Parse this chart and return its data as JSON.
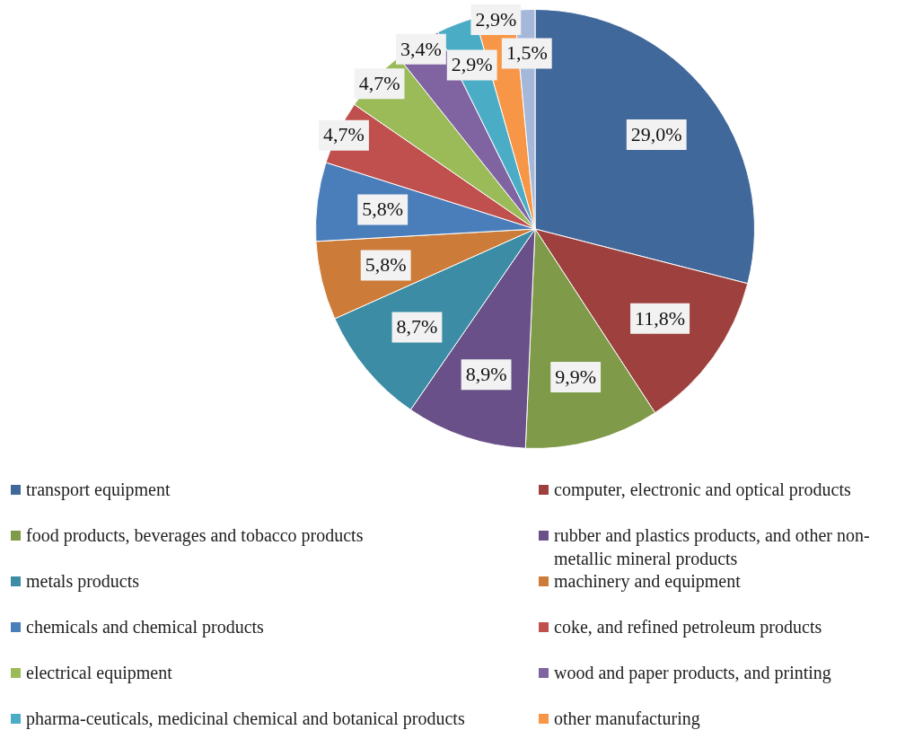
{
  "chart_data": {
    "type": "pie",
    "categories": [
      "transport equipment",
      "computer, electronic and optical products",
      "food products, beverages and tobacco products",
      "rubber and plastics products, and other non-metallic mineral products",
      "metals products",
      "machinery and equipment",
      "chemicals and chemical products",
      "coke, and refined petroleum products",
      "electrical equipment",
      "wood and paper products, and printing",
      "pharma-ceuticals, medicinal chemical and botanical products",
      "other manufacturing",
      null
    ],
    "values": [
      29.0,
      11.8,
      9.9,
      8.9,
      8.7,
      5.8,
      5.8,
      4.7,
      4.7,
      3.4,
      2.9,
      2.9,
      1.5
    ],
    "colors": [
      "#41689b",
      "#9e413e",
      "#7f9a48",
      "#6a5088",
      "#3b8ca4",
      "#cc7b38",
      "#4a7ebb",
      "#c0504d",
      "#9bbb59",
      "#8064a2",
      "#4bacc6",
      "#f79646",
      "#a5b8d9"
    ],
    "value_labels": [
      "29,0%",
      "11,8%",
      "9,9%",
      "8,9%",
      "8,7%",
      "5,8%",
      "5,8%",
      "4,7%",
      "4,7%",
      "3,4%",
      "2,9%",
      "2,9%",
      "1,5%"
    ],
    "legend": "bottom"
  }
}
